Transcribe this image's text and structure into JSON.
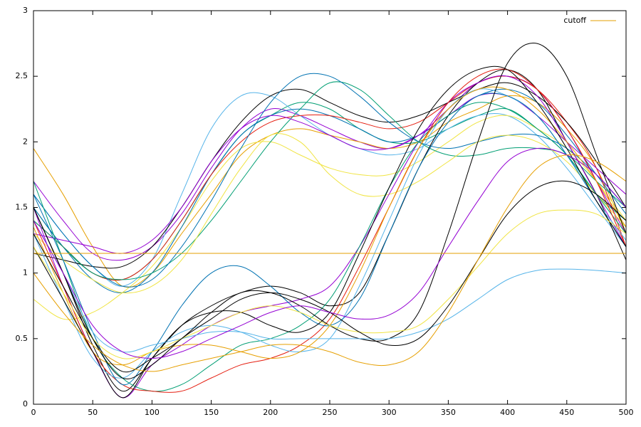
{
  "chart_data": {
    "type": "line",
    "x": [
      0,
      25,
      50,
      75,
      100,
      125,
      150,
      175,
      200,
      225,
      250,
      275,
      300,
      325,
      350,
      375,
      400,
      425,
      450,
      475,
      500
    ],
    "xlim": [
      0,
      500
    ],
    "xticks": [
      0,
      50,
      100,
      150,
      200,
      250,
      300,
      350,
      400,
      450,
      500
    ],
    "ylim": [
      0,
      3
    ],
    "yticks": [
      0,
      0.5,
      1,
      1.5,
      2,
      2.5,
      3
    ],
    "grid": false,
    "legend": "top-right",
    "series": [
      {
        "color": "#9400d3",
        "values": [
          1.7,
          1.4,
          1.15,
          1.1,
          1.2,
          1.45,
          1.8,
          2.1,
          2.25,
          2.2,
          2.1,
          2.0,
          1.95,
          2.05,
          2.25,
          2.45,
          2.5,
          2.4,
          2.1,
          1.7,
          1.3
        ]
      },
      {
        "color": "#009e73",
        "values": [
          1.5,
          1.2,
          1.0,
          0.95,
          1.1,
          1.4,
          1.75,
          2.05,
          2.2,
          2.3,
          2.25,
          2.1,
          2.0,
          2.0,
          2.1,
          2.2,
          2.25,
          2.1,
          1.9,
          1.6,
          1.4
        ]
      },
      {
        "color": "#56b4e9",
        "values": [
          1.6,
          1.3,
          1.05,
          0.9,
          1.1,
          1.6,
          2.1,
          2.35,
          2.35,
          2.2,
          2.05,
          1.95,
          1.9,
          1.95,
          2.1,
          2.2,
          2.2,
          2.05,
          1.8,
          1.5,
          1.2
        ]
      },
      {
        "color": "#e69f00",
        "values": [
          1.95,
          1.6,
          1.2,
          0.9,
          1.0,
          1.3,
          1.6,
          1.9,
          2.05,
          2.1,
          2.05,
          2.0,
          1.95,
          2.0,
          2.15,
          2.25,
          2.35,
          2.3,
          2.1,
          1.8,
          1.3
        ]
      },
      {
        "color": "#f0e442",
        "values": [
          0.8,
          0.65,
          0.7,
          0.85,
          1.05,
          1.35,
          1.7,
          1.95,
          2.0,
          1.9,
          1.8,
          1.75,
          1.75,
          1.85,
          2.0,
          2.15,
          2.2,
          2.1,
          1.95,
          1.7,
          1.4
        ]
      },
      {
        "color": "#0072b2",
        "values": [
          1.5,
          1.2,
          0.95,
          0.85,
          1.0,
          1.35,
          1.75,
          2.05,
          2.2,
          2.25,
          2.2,
          2.1,
          2.0,
          2.05,
          2.2,
          2.35,
          2.4,
          2.3,
          2.05,
          1.75,
          1.45
        ]
      },
      {
        "color": "#e51e10",
        "values": [
          1.4,
          1.2,
          1.0,
          0.95,
          1.1,
          1.4,
          1.75,
          2.0,
          2.15,
          2.2,
          2.2,
          2.15,
          2.1,
          2.15,
          2.3,
          2.45,
          2.5,
          2.4,
          2.15,
          1.8,
          1.2
        ]
      },
      {
        "color": "#000000",
        "values": [
          1.15,
          1.1,
          1.05,
          1.05,
          1.2,
          1.5,
          1.85,
          2.15,
          2.35,
          2.4,
          2.3,
          2.2,
          2.15,
          2.2,
          2.3,
          2.4,
          2.45,
          2.35,
          2.15,
          1.85,
          1.5
        ]
      },
      {
        "color": "#009e73",
        "values": [
          1.4,
          1.2,
          1.0,
          0.95,
          1.0,
          1.15,
          1.4,
          1.7,
          2.0,
          2.25,
          2.45,
          2.4,
          2.2,
          2.0,
          1.9,
          1.9,
          1.95,
          1.95,
          1.9,
          1.7,
          1.5
        ]
      },
      {
        "color": "#0072b2",
        "values": [
          1.6,
          1.3,
          1.05,
          0.9,
          0.95,
          1.2,
          1.55,
          1.95,
          2.3,
          2.5,
          2.5,
          2.35,
          2.15,
          2.0,
          1.95,
          2.0,
          2.05,
          2.05,
          1.95,
          1.75,
          1.5
        ]
      },
      {
        "color": "#9400d3",
        "values": [
          1.3,
          1.25,
          1.2,
          1.15,
          1.25,
          1.5,
          1.85,
          2.1,
          2.2,
          2.15,
          2.05,
          1.95,
          1.95,
          2.05,
          2.2,
          2.35,
          2.35,
          2.2,
          2.0,
          1.8,
          1.6
        ]
      },
      {
        "color": "#f0e442",
        "values": [
          1.3,
          1.1,
          0.95,
          0.85,
          0.9,
          1.1,
          1.45,
          1.8,
          2.05,
          2.0,
          1.75,
          1.6,
          1.6,
          1.7,
          1.85,
          2.0,
          2.05,
          2.0,
          1.85,
          1.6,
          1.35
        ]
      },
      {
        "color": "#000000",
        "values": [
          1.5,
          1.0,
          0.45,
          0.1,
          0.35,
          0.6,
          0.75,
          0.85,
          0.9,
          0.85,
          0.75,
          0.85,
          1.3,
          1.8,
          2.2,
          2.45,
          2.55,
          2.4,
          2.0,
          1.6,
          1.1
        ]
      },
      {
        "color": "#9400d3",
        "values": [
          1.5,
          0.9,
          0.4,
          0.05,
          0.3,
          0.45,
          0.6,
          0.7,
          0.75,
          0.8,
          0.9,
          1.2,
          1.6,
          2.0,
          2.3,
          2.45,
          2.5,
          2.35,
          2.0,
          1.6,
          1.2
        ]
      },
      {
        "color": "#009e73",
        "values": [
          1.7,
          1.1,
          0.5,
          0.2,
          0.1,
          0.15,
          0.3,
          0.45,
          0.5,
          0.6,
          0.8,
          1.2,
          1.65,
          2.0,
          2.2,
          2.3,
          2.25,
          2.1,
          1.9,
          1.6,
          1.3
        ]
      },
      {
        "color": "#e51e10",
        "values": [
          1.4,
          0.9,
          0.4,
          0.15,
          0.1,
          0.1,
          0.2,
          0.3,
          0.35,
          0.45,
          0.65,
          1.05,
          1.5,
          1.95,
          2.3,
          2.5,
          2.55,
          2.4,
          2.1,
          1.7,
          1.2
        ]
      },
      {
        "color": "#56b4e9",
        "values": [
          1.3,
          0.8,
          0.35,
          0.2,
          0.4,
          0.55,
          0.6,
          0.55,
          0.45,
          0.4,
          0.5,
          0.9,
          1.4,
          1.9,
          2.25,
          2.4,
          2.35,
          2.2,
          1.9,
          1.55,
          1.25
        ]
      },
      {
        "color": "#0072b2",
        "values": [
          1.6,
          1.1,
          0.55,
          0.15,
          0.4,
          0.75,
          1.0,
          1.05,
          0.9,
          0.7,
          0.6,
          0.8,
          1.3,
          1.8,
          2.15,
          2.35,
          2.35,
          2.2,
          1.9,
          1.55,
          1.2
        ]
      },
      {
        "color": "#e69f00",
        "values": [
          1.35,
          0.85,
          0.4,
          0.3,
          0.4,
          0.45,
          0.45,
          0.4,
          0.35,
          0.4,
          0.6,
          1.0,
          1.5,
          1.95,
          2.25,
          2.4,
          2.4,
          2.25,
          2.0,
          1.7,
          1.35
        ]
      },
      {
        "color": "#000000",
        "values": [
          1.2,
          0.8,
          0.4,
          0.05,
          0.35,
          0.6,
          0.7,
          0.7,
          0.6,
          0.55,
          0.7,
          1.15,
          1.65,
          2.1,
          2.4,
          2.55,
          2.55,
          2.3,
          1.95,
          1.55,
          1.2
        ]
      },
      {
        "color": "#000000",
        "values": [
          1.3,
          0.9,
          0.5,
          0.25,
          0.35,
          0.5,
          0.7,
          0.85,
          0.85,
          0.75,
          0.6,
          0.5,
          0.5,
          0.7,
          1.3,
          2.0,
          2.6,
          2.75,
          2.5,
          1.9,
          1.3
        ]
      },
      {
        "color": "#56b4e9",
        "values": [
          1.4,
          1.0,
          0.55,
          0.4,
          0.45,
          0.5,
          0.55,
          0.55,
          0.5,
          0.5,
          0.5,
          0.5,
          0.5,
          0.55,
          0.65,
          0.8,
          0.95,
          1.02,
          1.03,
          1.02,
          1.0
        ]
      },
      {
        "color": "#f0e442",
        "values": [
          1.2,
          0.85,
          0.5,
          0.35,
          0.4,
          0.5,
          0.6,
          0.7,
          0.75,
          0.7,
          0.6,
          0.55,
          0.55,
          0.6,
          0.8,
          1.05,
          1.3,
          1.45,
          1.48,
          1.45,
          1.3
        ]
      },
      {
        "color": "#000000",
        "values": [
          1.5,
          1.0,
          0.5,
          0.2,
          0.3,
          0.5,
          0.65,
          0.8,
          0.85,
          0.8,
          0.7,
          0.55,
          0.45,
          0.5,
          0.75,
          1.1,
          1.45,
          1.65,
          1.7,
          1.6,
          1.4
        ]
      },
      {
        "color": "#9400d3",
        "values": [
          1.4,
          1.0,
          0.6,
          0.4,
          0.35,
          0.4,
          0.5,
          0.6,
          0.7,
          0.75,
          0.7,
          0.65,
          0.68,
          0.85,
          1.2,
          1.55,
          1.85,
          1.95,
          1.9,
          1.75,
          1.5
        ]
      },
      {
        "color": "#e69f00",
        "values": [
          1.0,
          0.7,
          0.45,
          0.3,
          0.25,
          0.3,
          0.35,
          0.4,
          0.45,
          0.45,
          0.4,
          0.32,
          0.3,
          0.4,
          0.7,
          1.1,
          1.5,
          1.8,
          1.9,
          1.85,
          1.7
        ]
      },
      {
        "name": "cutoff",
        "color": "#e69f00",
        "values": [
          1.15,
          1.15,
          1.15,
          1.15,
          1.15,
          1.15,
          1.15,
          1.15,
          1.15,
          1.15,
          1.15,
          1.15,
          1.15,
          1.15,
          1.15,
          1.15,
          1.15,
          1.15,
          1.15,
          1.15,
          1.15
        ]
      }
    ]
  }
}
